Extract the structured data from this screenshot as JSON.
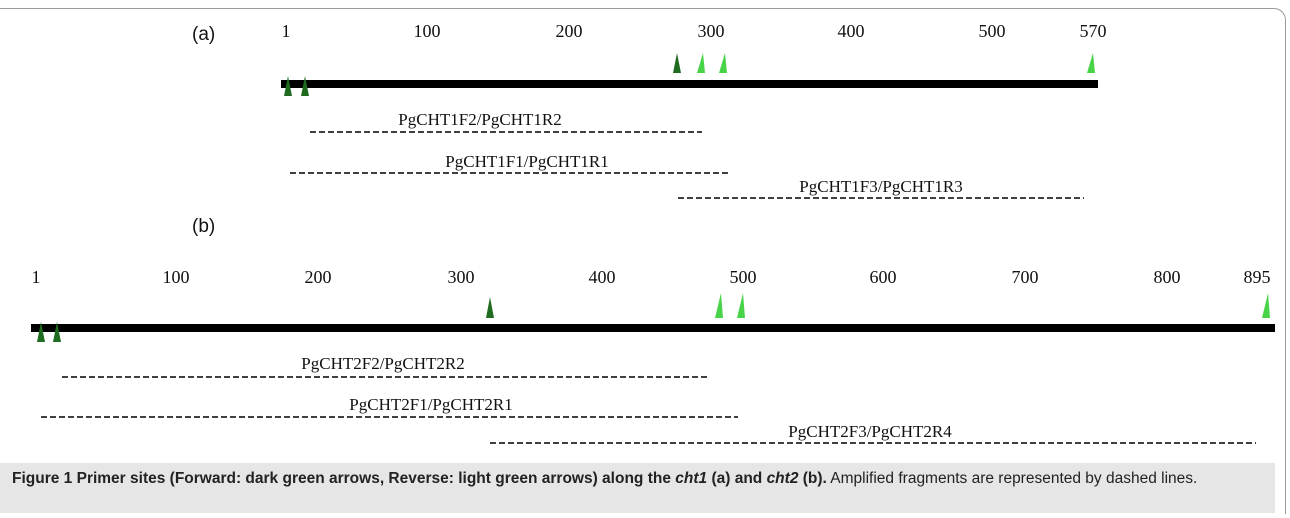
{
  "panel_a": {
    "label": "(a)",
    "ticks": [
      "1",
      "100",
      "200",
      "300",
      "400",
      "500",
      "570"
    ],
    "primers": [
      {
        "label": "PgCHT1F2/PgCHT1R2"
      },
      {
        "label": "PgCHT1F1/PgCHT1R1"
      },
      {
        "label": "PgCHT1F3/PgCHT1R3"
      }
    ]
  },
  "panel_b": {
    "label": "(b)",
    "ticks": [
      "1",
      "100",
      "200",
      "300",
      "400",
      "500",
      "600",
      "700",
      "800",
      "895"
    ],
    "primers": [
      {
        "label": "PgCHT2F2/PgCHT2R2"
      },
      {
        "label": "PgCHT2F1/PgCHT2R1"
      },
      {
        "label": "PgCHT2F3/PgCHT2R4"
      }
    ]
  },
  "colors": {
    "forward": "#1f6b1f",
    "reverse": "#49d349",
    "ruler": "#000000"
  },
  "caption": {
    "figure_label": "Figure 1",
    "bold_text_1": " Primer sites (Forward: dark green arrows, Reverse: light green arrows) along the ",
    "gene1": "cht1",
    "bold_text_2": " (a) and ",
    "gene2": "cht2",
    "bold_text_3": " (b).",
    "rest": " Amplified fragments are represented by dashed lines."
  }
}
